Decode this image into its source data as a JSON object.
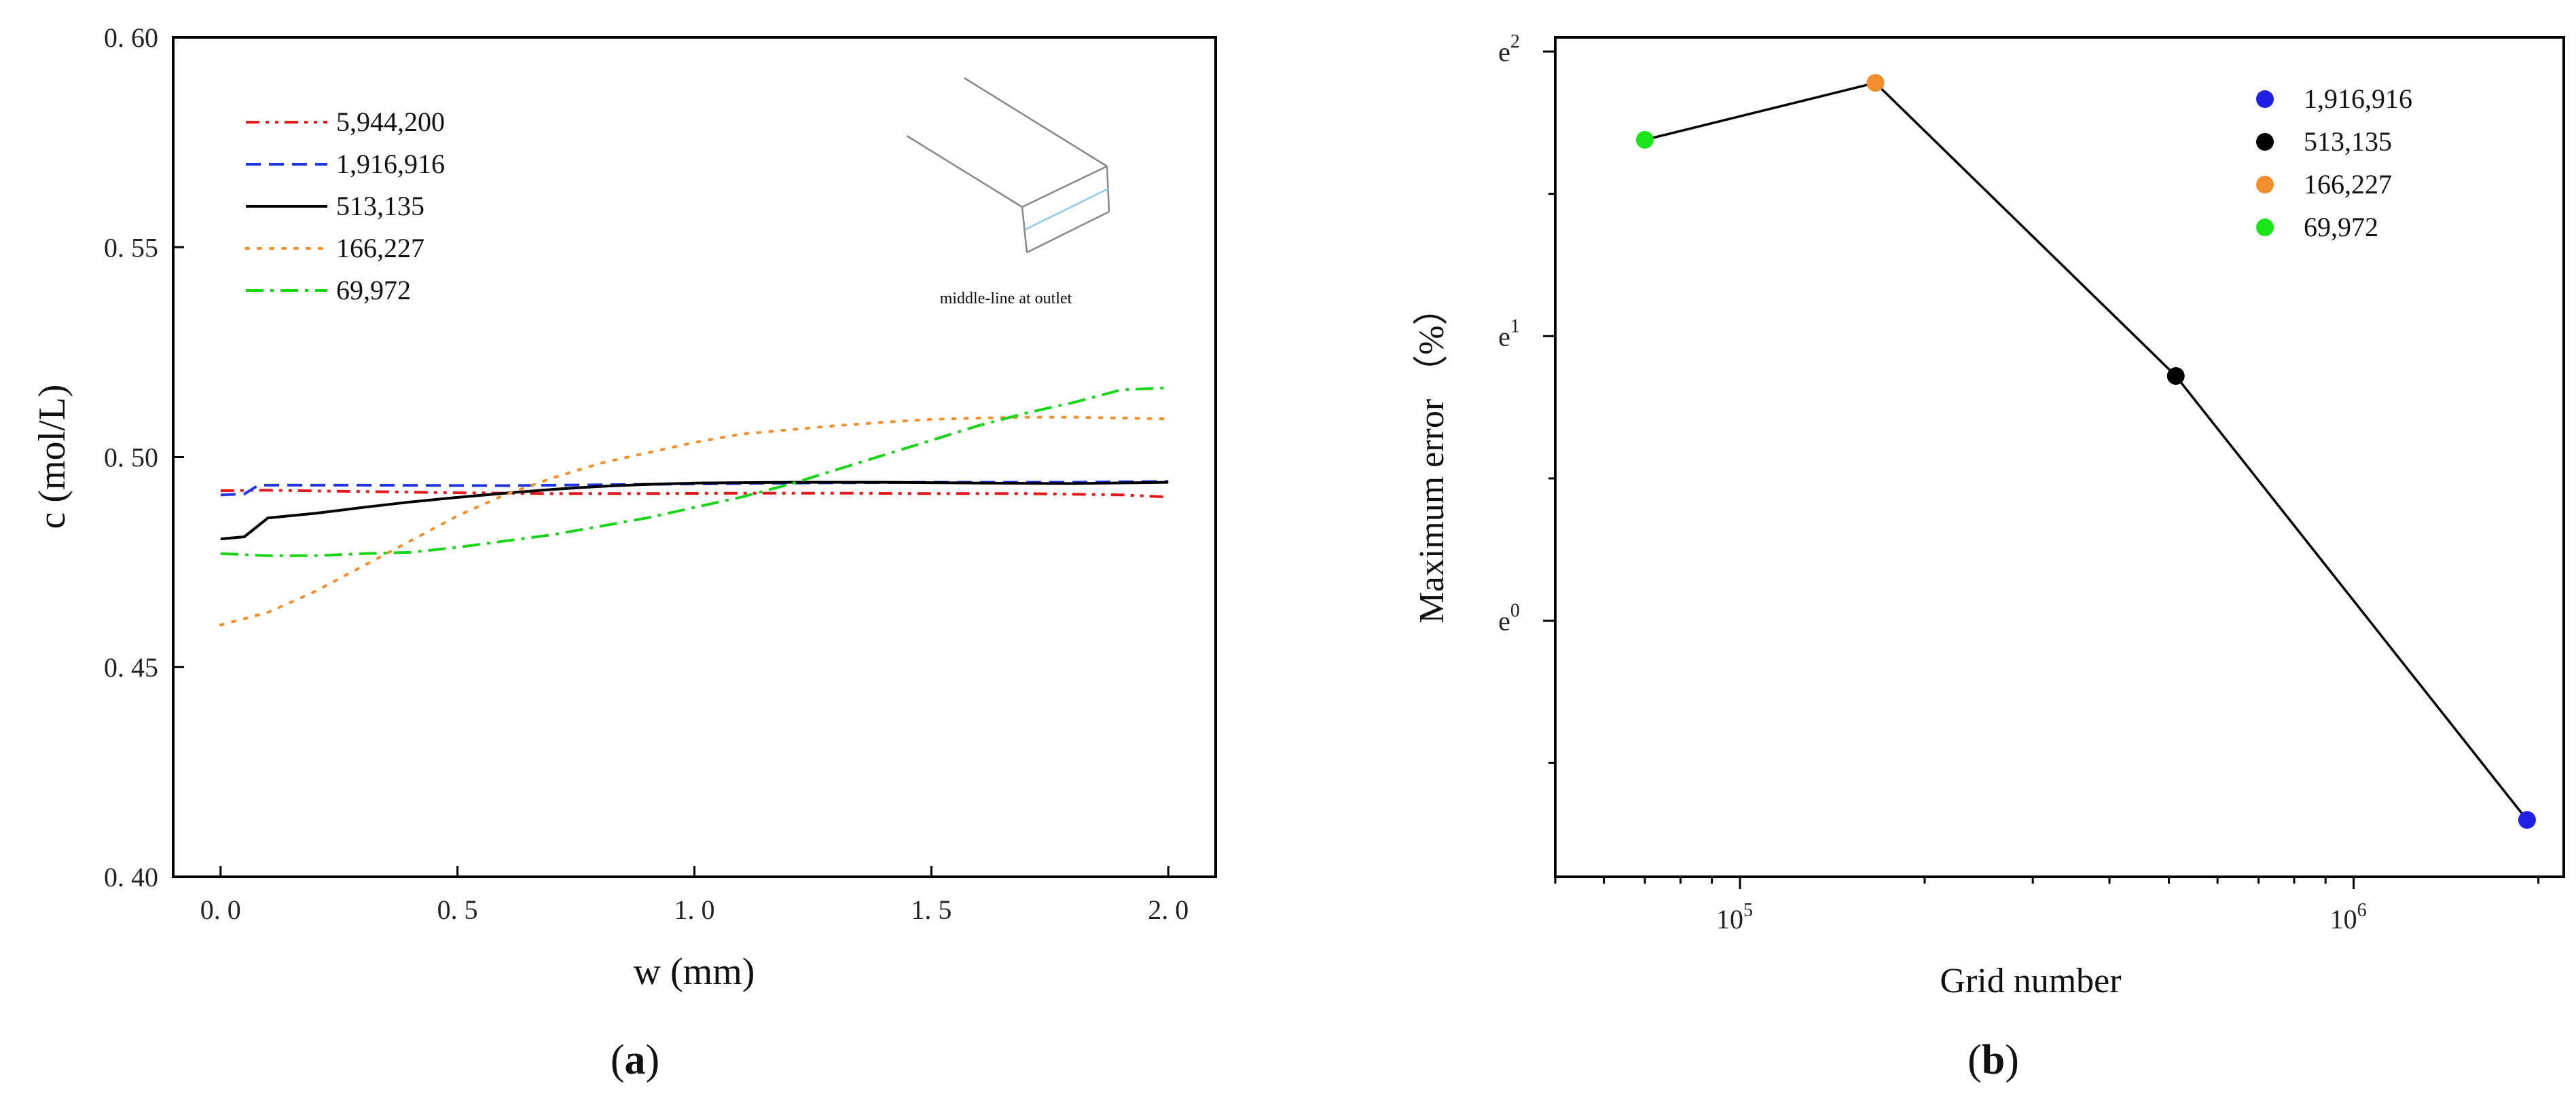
{
  "chart_data": [
    {
      "panel": "a",
      "type": "line",
      "panel_label": "a",
      "xlabel": "w (mm)",
      "ylabel": "c (mol/L)",
      "xlim": [
        -0.1,
        2.1
      ],
      "ylim": [
        0.4,
        0.6
      ],
      "xticks": [
        0.0,
        0.5,
        1.0,
        1.5,
        2.0
      ],
      "xtick_labels": [
        "0. 0",
        "0. 5",
        "1. 0",
        "1. 5",
        "2. 0"
      ],
      "yticks": [
        0.4,
        0.45,
        0.5,
        0.55,
        0.6
      ],
      "ytick_labels": [
        "0. 40",
        "0. 45",
        "0. 50",
        "0. 55",
        "0. 60"
      ],
      "legend_position": "top-left",
      "inset_caption": "middle-line at outlet",
      "series": [
        {
          "name": "5,944,200",
          "color": "#e31a1c",
          "dash": "dashdotdot",
          "x": [
            0.0,
            0.1,
            0.3,
            0.5,
            0.7,
            0.9,
            1.1,
            1.3,
            1.5,
            1.7,
            1.9,
            2.0
          ],
          "y": [
            0.492,
            0.4921,
            0.4918,
            0.4915,
            0.4913,
            0.4913,
            0.4914,
            0.4914,
            0.4913,
            0.4913,
            0.491,
            0.4905
          ]
        },
        {
          "name": "1,916,916",
          "color": "#1f35e0",
          "dash": "dashed",
          "x": [
            0.0,
            0.05,
            0.08,
            0.3,
            0.6,
            0.9,
            1.2,
            1.5,
            1.8,
            2.0
          ],
          "y": [
            0.491,
            0.4912,
            0.4933,
            0.4933,
            0.4932,
            0.4935,
            0.4938,
            0.494,
            0.494,
            0.4942
          ]
        },
        {
          "name": "513,135",
          "color": "#000000",
          "dash": "solid",
          "x": [
            0.0,
            0.05,
            0.1,
            0.2,
            0.3,
            0.4,
            0.5,
            0.6,
            0.7,
            0.8,
            0.9,
            1.0,
            1.2,
            1.4,
            1.6,
            1.8,
            2.0
          ],
          "y": [
            0.4805,
            0.481,
            0.4855,
            0.4866,
            0.488,
            0.4893,
            0.4904,
            0.4914,
            0.4923,
            0.493,
            0.4935,
            0.4938,
            0.494,
            0.494,
            0.4938,
            0.4937,
            0.494
          ]
        },
        {
          "name": "166,227",
          "color": "#f28e2b",
          "dash": "dotted",
          "x": [
            0.0,
            0.1,
            0.2,
            0.3,
            0.4,
            0.5,
            0.6,
            0.7,
            0.8,
            0.9,
            1.0,
            1.1,
            1.2,
            1.3,
            1.4,
            1.5,
            1.6,
            1.7,
            1.8,
            1.9,
            2.0
          ],
          "y": [
            0.46,
            0.463,
            0.468,
            0.474,
            0.48,
            0.486,
            0.491,
            0.495,
            0.4985,
            0.501,
            0.5035,
            0.5055,
            0.5065,
            0.5075,
            0.5083,
            0.509,
            0.5093,
            0.5095,
            0.5095,
            0.5093,
            0.5091
          ]
        },
        {
          "name": "69,972",
          "color": "#19d419",
          "dash": "dashdot",
          "x": [
            0.0,
            0.1,
            0.2,
            0.3,
            0.4,
            0.5,
            0.6,
            0.7,
            0.8,
            0.9,
            1.0,
            1.1,
            1.2,
            1.3,
            1.4,
            1.5,
            1.6,
            1.7,
            1.8,
            1.9,
            2.0
          ],
          "y": [
            0.477,
            0.4765,
            0.4765,
            0.477,
            0.4773,
            0.4785,
            0.48,
            0.4815,
            0.4835,
            0.4855,
            0.488,
            0.4905,
            0.4935,
            0.497,
            0.5005,
            0.504,
            0.5075,
            0.5105,
            0.513,
            0.516,
            0.5165
          ]
        }
      ]
    },
    {
      "panel": "b",
      "type": "scatter",
      "panel_label": "b",
      "xlabel": "Grid number",
      "ylabel": "Maximum error （%）",
      "xscale": "log",
      "yscale": "ln",
      "xlim": [
        50000,
        2200000
      ],
      "ylim": [
        -0.9,
        2.05
      ],
      "xticks": [
        100000,
        1000000
      ],
      "xtick_labels": [
        {
          "base": "10",
          "exp": "5"
        },
        {
          "base": "10",
          "exp": "6"
        }
      ],
      "yticks": [
        0,
        1,
        2
      ],
      "ytick_labels": [
        {
          "base": "e",
          "exp": "0"
        },
        {
          "base": "e",
          "exp": "1"
        },
        {
          "base": "e",
          "exp": "2"
        }
      ],
      "legend_position": "top-right",
      "points": [
        {
          "name": "69,972",
          "x": 69972,
          "ln_error": 1.69,
          "color": "#19e619"
        },
        {
          "name": "166,227",
          "x": 166227,
          "ln_error": 1.89,
          "color": "#f28e2b"
        },
        {
          "name": "513,135",
          "x": 513135,
          "ln_error": 0.86,
          "color": "#000000"
        },
        {
          "name": "1,916,916",
          "x": 1916916,
          "ln_error": -0.7,
          "color": "#1f1fe6"
        }
      ],
      "legend_entries": [
        {
          "name": "1,916,916",
          "color": "#1f1fe6"
        },
        {
          "name": "513,135",
          "color": "#000000"
        },
        {
          "name": "166,227",
          "color": "#f28e2b"
        },
        {
          "name": "69,972",
          "color": "#19e619"
        }
      ]
    }
  ]
}
